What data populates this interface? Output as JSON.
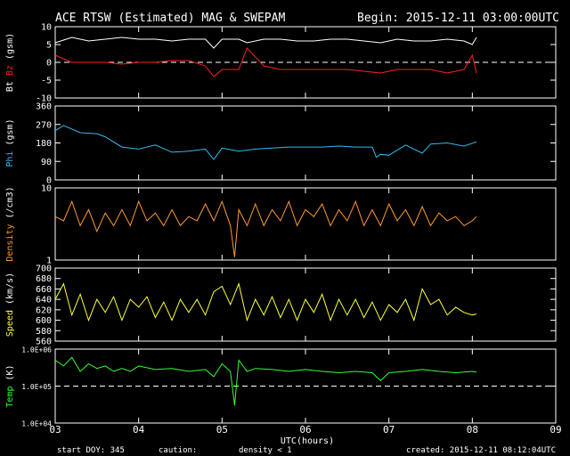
{
  "header": {
    "title": "ACE RTSW (Estimated) MAG & SWEPAM",
    "begin": "Begin: 2015-12-11 03:00:00UTC"
  },
  "footer": {
    "start_doy": "start DOY: 345",
    "caution": "caution:",
    "density_note": "density < 1",
    "created": "created: 2015-12-11 08:12:04UTC",
    "xlabel": "UTC(hours)"
  },
  "colors": {
    "bt": "#ffffff",
    "bz": "#ff2020",
    "phi": "#33bbee",
    "density": "#ff9933",
    "speed": "#ffff33",
    "temp": "#33ff33",
    "axis": "#ffffff",
    "background": "#000000"
  },
  "chart_data": [
    {
      "type": "line",
      "ylabel_parts": [
        "Bt",
        "Bz",
        "(gsm)"
      ],
      "ylim": [
        -10,
        10
      ],
      "yticks": [
        10,
        5,
        0,
        -5,
        -10
      ],
      "ytick_labels": [
        "10",
        "5",
        "0",
        "-5",
        "-10"
      ],
      "reference_line": 0,
      "series": [
        {
          "name": "Bt",
          "x": [
            3.0,
            3.2,
            3.4,
            3.6,
            3.8,
            4.0,
            4.2,
            4.4,
            4.6,
            4.8,
            4.9,
            5.0,
            5.2,
            5.3,
            5.5,
            5.7,
            5.9,
            6.1,
            6.3,
            6.5,
            6.7,
            6.9,
            7.1,
            7.3,
            7.5,
            7.7,
            7.9,
            8.0,
            8.05
          ],
          "y": [
            5.5,
            7,
            6,
            6.5,
            7,
            6.5,
            6.5,
            6,
            6.5,
            6.5,
            4,
            6.5,
            6.5,
            5.5,
            6.5,
            6.5,
            6,
            6,
            6.5,
            6.5,
            6,
            5.5,
            6.5,
            6,
            6,
            6.5,
            6,
            5,
            7
          ]
        },
        {
          "name": "Bz",
          "x": [
            3.0,
            3.2,
            3.4,
            3.6,
            3.8,
            4.0,
            4.2,
            4.4,
            4.6,
            4.8,
            4.9,
            5.0,
            5.2,
            5.3,
            5.5,
            5.7,
            5.9,
            6.1,
            6.3,
            6.5,
            6.7,
            6.9,
            7.1,
            7.3,
            7.5,
            7.7,
            7.9,
            8.0,
            8.05
          ],
          "y": [
            2,
            0,
            0,
            0,
            -0.5,
            0,
            0,
            0.5,
            0.5,
            -1,
            -4,
            -2,
            -2,
            4,
            -1,
            -2,
            -2,
            -2,
            -2,
            -2,
            -2.5,
            -3,
            -2,
            -2,
            -2,
            -3,
            -2,
            2,
            -3
          ]
        }
      ]
    },
    {
      "type": "line",
      "ylabel_parts": [
        "Phi",
        "(gsm)"
      ],
      "ylim": [
        0,
        360
      ],
      "yticks": [
        360,
        270,
        180,
        90,
        0
      ],
      "ytick_labels": [
        "360",
        "270",
        "180",
        "90",
        "0"
      ],
      "series": [
        {
          "name": "Phi",
          "x": [
            3.0,
            3.1,
            3.3,
            3.5,
            3.6,
            3.8,
            4.0,
            4.2,
            4.4,
            4.6,
            4.8,
            4.9,
            5.0,
            5.2,
            5.4,
            5.6,
            5.8,
            6.0,
            6.2,
            6.4,
            6.6,
            6.8,
            6.85,
            6.9,
            7.0,
            7.2,
            7.4,
            7.5,
            7.7,
            7.9,
            8.05
          ],
          "y": [
            240,
            265,
            230,
            225,
            210,
            160,
            150,
            170,
            135,
            140,
            150,
            100,
            155,
            140,
            150,
            155,
            160,
            160,
            160,
            165,
            160,
            160,
            110,
            125,
            120,
            170,
            130,
            175,
            180,
            165,
            185
          ]
        }
      ]
    },
    {
      "type": "line",
      "ylabel_parts": [
        "Density",
        "(/cm3)"
      ],
      "yscale": "log",
      "ylim": [
        1,
        10
      ],
      "yticks": [
        10,
        1
      ],
      "ytick_labels": [
        "10",
        "1"
      ],
      "series": [
        {
          "name": "Density",
          "x": [
            3.0,
            3.1,
            3.2,
            3.3,
            3.4,
            3.5,
            3.6,
            3.7,
            3.8,
            3.9,
            4.0,
            4.1,
            4.2,
            4.3,
            4.4,
            4.5,
            4.6,
            4.7,
            4.8,
            4.9,
            5.0,
            5.1,
            5.15,
            5.2,
            5.3,
            5.4,
            5.5,
            5.6,
            5.7,
            5.8,
            5.9,
            6.0,
            6.1,
            6.2,
            6.3,
            6.4,
            6.5,
            6.6,
            6.7,
            6.8,
            6.9,
            7.0,
            7.1,
            7.2,
            7.3,
            7.4,
            7.5,
            7.6,
            7.7,
            7.8,
            7.9,
            8.0,
            8.05
          ],
          "y": [
            4,
            3.5,
            6.5,
            3,
            5,
            2.5,
            4.5,
            3,
            5,
            3,
            6.5,
            3.5,
            4.5,
            3,
            5,
            3,
            4,
            3.5,
            6,
            3.5,
            6.5,
            3,
            1.1,
            5,
            3,
            6,
            3,
            5,
            3.5,
            6.5,
            3,
            5,
            4,
            6,
            3,
            5,
            3.5,
            6.5,
            3,
            5,
            3,
            6,
            3.5,
            5,
            3,
            5.5,
            3,
            4.5,
            3.5,
            4,
            3,
            3.5,
            4
          ]
        }
      ]
    },
    {
      "type": "line",
      "ylabel_parts": [
        "Speed",
        "(km/s)"
      ],
      "ylim": [
        560,
        700
      ],
      "yticks": [
        700,
        680,
        660,
        640,
        620,
        600,
        580,
        560
      ],
      "ytick_labels": [
        "700",
        "680",
        "660",
        "640",
        "620",
        "600",
        "580",
        "560"
      ],
      "series": [
        {
          "name": "Speed",
          "x": [
            3.0,
            3.1,
            3.2,
            3.3,
            3.4,
            3.5,
            3.6,
            3.7,
            3.8,
            3.9,
            4.0,
            4.1,
            4.2,
            4.3,
            4.4,
            4.5,
            4.6,
            4.7,
            4.8,
            4.9,
            5.0,
            5.1,
            5.2,
            5.3,
            5.4,
            5.5,
            5.6,
            5.7,
            5.8,
            5.9,
            6.0,
            6.1,
            6.2,
            6.3,
            6.4,
            6.5,
            6.6,
            6.7,
            6.8,
            6.9,
            7.0,
            7.1,
            7.2,
            7.3,
            7.4,
            7.5,
            7.6,
            7.7,
            7.8,
            7.9,
            8.0,
            8.05
          ],
          "y": [
            640,
            670,
            610,
            650,
            600,
            640,
            615,
            645,
            600,
            640,
            625,
            645,
            605,
            635,
            600,
            640,
            615,
            640,
            610,
            655,
            665,
            630,
            670,
            600,
            640,
            610,
            645,
            605,
            640,
            600,
            640,
            615,
            650,
            600,
            640,
            610,
            640,
            605,
            635,
            600,
            630,
            615,
            640,
            600,
            660,
            630,
            640,
            610,
            625,
            615,
            610,
            612
          ]
        }
      ]
    },
    {
      "type": "line",
      "ylabel_parts": [
        "Temp",
        "(K)"
      ],
      "yscale": "log",
      "ylim": [
        10000,
        1000000
      ],
      "yticks": [
        1000000,
        100000,
        10000
      ],
      "ytick_labels": [
        "1.0E+06",
        "1.0E+05",
        "1.0E+04"
      ],
      "reference_line": 100000,
      "series": [
        {
          "name": "Temp",
          "x": [
            3.0,
            3.1,
            3.2,
            3.3,
            3.4,
            3.5,
            3.6,
            3.7,
            3.8,
            3.9,
            4.0,
            4.2,
            4.4,
            4.6,
            4.8,
            4.9,
            5.0,
            5.1,
            5.15,
            5.2,
            5.3,
            5.4,
            5.6,
            5.8,
            6.0,
            6.2,
            6.4,
            6.6,
            6.8,
            6.9,
            7.0,
            7.2,
            7.4,
            7.6,
            7.8,
            8.0,
            8.05
          ],
          "y": [
            500000,
            350000,
            600000,
            250000,
            400000,
            300000,
            350000,
            250000,
            300000,
            250000,
            350000,
            280000,
            300000,
            250000,
            280000,
            180000,
            400000,
            250000,
            30000,
            500000,
            250000,
            300000,
            280000,
            250000,
            280000,
            250000,
            230000,
            250000,
            230000,
            140000,
            230000,
            250000,
            280000,
            250000,
            230000,
            250000,
            240000
          ]
        }
      ]
    }
  ],
  "xaxis": {
    "xlim": [
      3,
      9
    ],
    "ticks": [
      3,
      4,
      5,
      6,
      7,
      8,
      9
    ],
    "tick_labels": [
      "03",
      "04",
      "05",
      "06",
      "07",
      "08",
      "09"
    ]
  }
}
